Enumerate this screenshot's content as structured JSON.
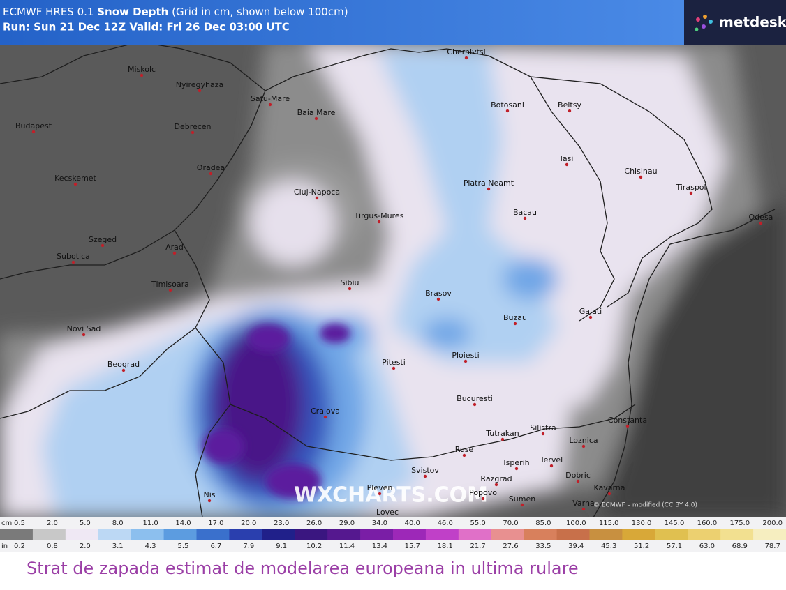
{
  "header": {
    "model": "ECMWF HRES 0.1",
    "product": "Snow Depth",
    "note": "(Grid in cm, shown below 100cm)",
    "run": "Run: Sun 21 Dec 12Z Valid: Fri 26 Dec 03:00 UTC"
  },
  "logo": "metdesk",
  "cities": [
    "Chernivtsi",
    "Miskolc",
    "Nyiregyhaza",
    "Satu-Mare",
    "Baia Mare",
    "Botosani",
    "Beltsy",
    "Budapest",
    "Debrecen",
    "Iasi",
    "Oradea",
    "Chisinau",
    "Kecskemet",
    "Piatra Neamt",
    "Tiraspol",
    "Cluj-Napoca",
    "Bacau",
    "Tirgus-Mures",
    "Odesa",
    "Szeged",
    "Arad",
    "Subotica",
    "Sibiu",
    "Timisoara",
    "Brasov",
    "Galati",
    "Novi Sad",
    "Buzau",
    "Ploiesti",
    "Beograd",
    "Pitesti",
    "Bucuresti",
    "Craiova",
    "Constanta",
    "Silistra",
    "Tutrakan",
    "Loznica",
    "Ruse",
    "Isperih",
    "Tervel",
    "Svistov",
    "Dobric",
    "Razgrad",
    "Pleven",
    "Kavarna",
    "Popovo",
    "Sumen",
    "Varna",
    "Nis",
    "Lovec"
  ],
  "watermark": "WXCHARTS.COM",
  "attribution": "© ECMWF – modified (CC BY 4.0)",
  "legend": {
    "cm_unit": "cm",
    "cm_labels": [
      "0.5",
      "2.0",
      "5.0",
      "8.0",
      "11.0",
      "14.0",
      "17.0",
      "20.0",
      "23.0",
      "26.0",
      "29.0",
      "34.0",
      "40.0",
      "46.0",
      "55.0",
      "70.0",
      "85.0",
      "100.0",
      "115.0",
      "130.0",
      "145.0",
      "160.0",
      "175.0",
      "200.0"
    ],
    "in_unit": "in",
    "in_labels": [
      "0.2",
      "0.8",
      "2.0",
      "3.1",
      "4.3",
      "5.5",
      "6.7",
      "7.9",
      "9.1",
      "10.2",
      "11.4",
      "13.4",
      "15.7",
      "18.1",
      "21.7",
      "27.6",
      "33.5",
      "39.4",
      "45.3",
      "51.2",
      "57.1",
      "63.0",
      "68.9",
      "78.7"
    ]
  },
  "caption": "Strat de zapada estimat de modelarea europeana in ultima rulare"
}
